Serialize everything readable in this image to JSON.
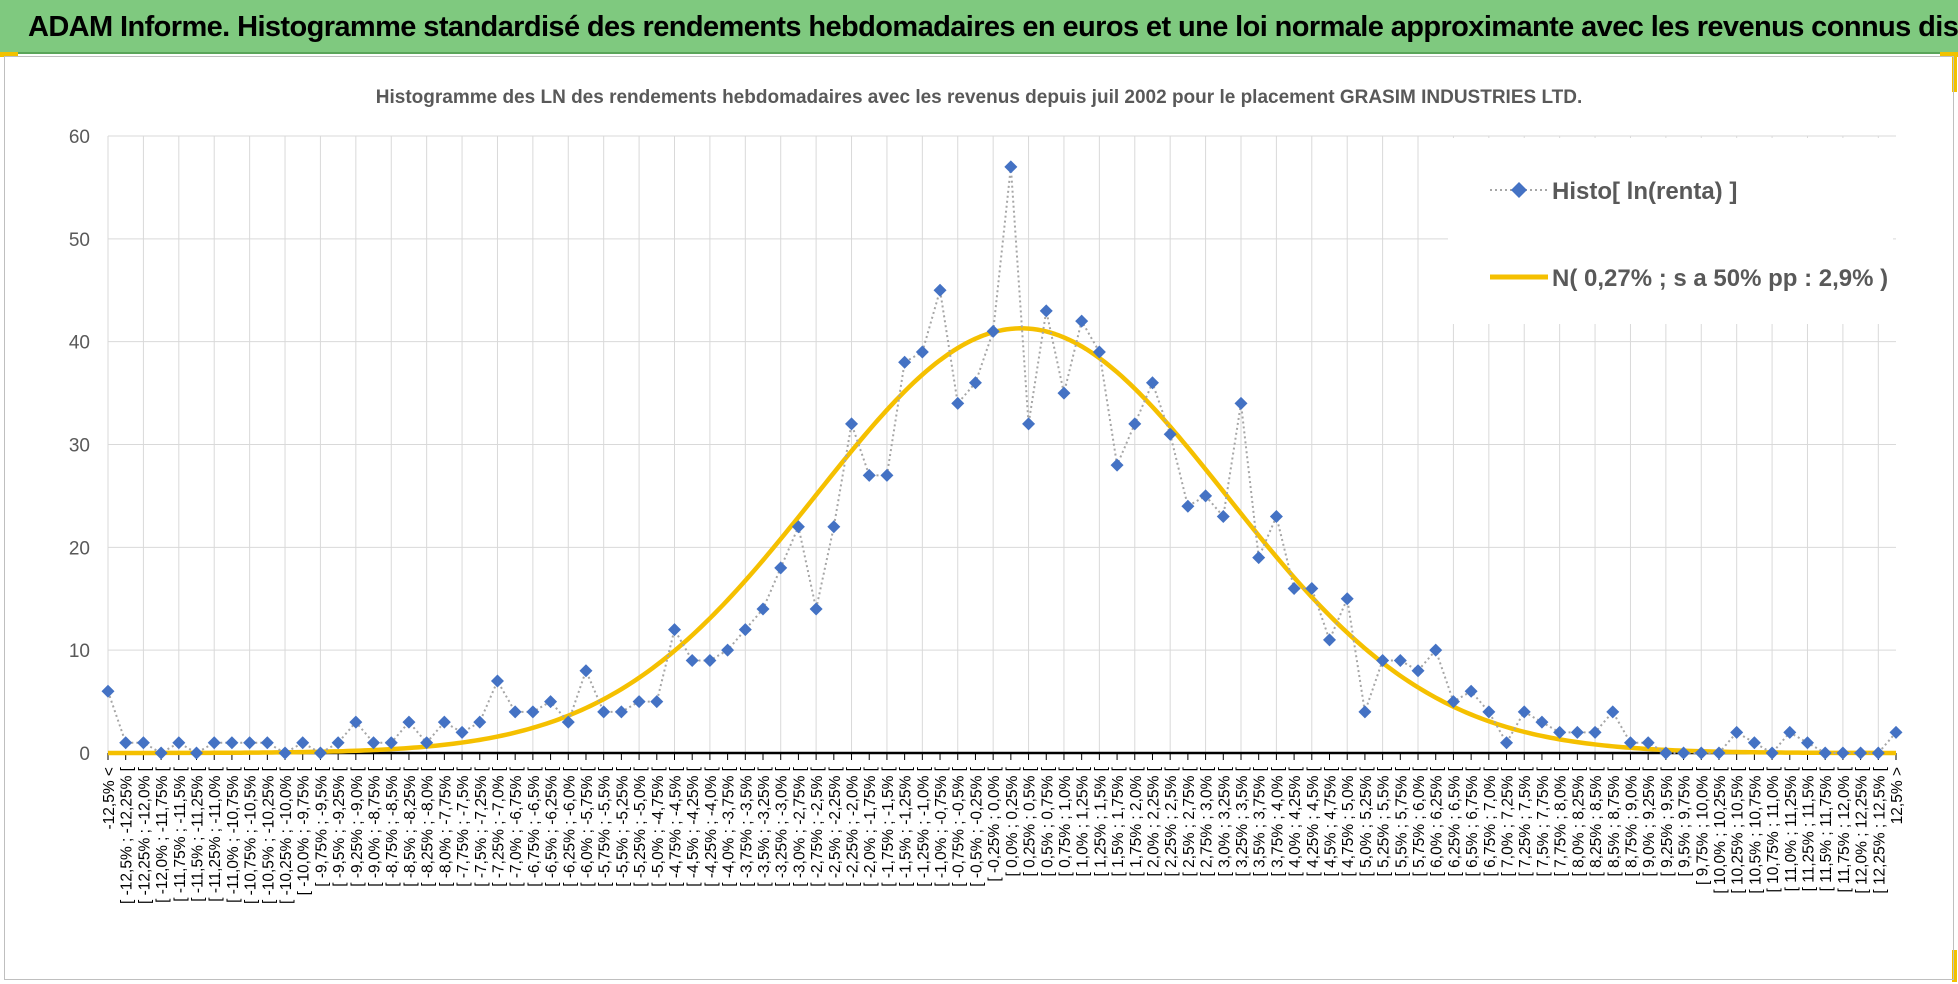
{
  "banner": {
    "title": "ADAM Informe. Histogramme standardisé des rendements hebdomadaires en euros et une loi normale approximante avec les revenus connus distribués",
    "background": "#7fc97f",
    "accent": "#f2c200"
  },
  "chart_data": {
    "type": "line",
    "title": "Histogramme des LN des rendements hebdomadaires avec les revenus depuis juil 2002 pour le placement GRASIM INDUSTRIES LTD.",
    "xlabel": "",
    "ylabel": "",
    "ylim": [
      0,
      60
    ],
    "yticks": [
      0,
      10,
      20,
      30,
      40,
      50,
      60
    ],
    "grid": true,
    "legend_position": "top-right",
    "categories": [
      "-12,5% <",
      "[ -12,5% ; -12,25% [",
      "[ -12,25% ; -12,0% [",
      "[ -12,0% ; -11,75% [",
      "[ -11,75% ; -11,5% [",
      "[ -11,5% ; -11,25% [",
      "[ -11,25% ; -11,0% [",
      "[ -11,0% ; -10,75% [",
      "[ -10,75% ; -10,5% [",
      "[ -10,5% ; -10,25% [",
      "[ -10,25% ; -10,0% [",
      "[ -10,0% ; -9,75% [",
      "[ -9,75% ; -9,5% [",
      "[ -9,5% ; -9,25% [",
      "[ -9,25% ; -9,0% [",
      "[ -9,0% ; -8,75% [",
      "[ -8,75% ; -8,5% [",
      "[ -8,5% ; -8,25% [",
      "[ -8,25% ; -8,0% [",
      "[ -8,0% ; -7,75% [",
      "[ -7,75% ; -7,5% [",
      "[ -7,5% ; -7,25% [",
      "[ -7,25% ; -7,0% [",
      "[ -7,0% ; -6,75% [",
      "[ -6,75% ; -6,5% [",
      "[ -6,5% ; -6,25% [",
      "[ -6,25% ; -6,0% [",
      "[ -6,0% ; -5,75% [",
      "[ -5,75% ; -5,5% [",
      "[ -5,5% ; -5,25% [",
      "[ -5,25% ; -5,0% [",
      "[ -5,0% ; -4,75% [",
      "[ -4,75% ; -4,5% [",
      "[ -4,5% ; -4,25% [",
      "[ -4,25% ; -4,0% [",
      "[ -4,0% ; -3,75% [",
      "[ -3,75% ; -3,5% [",
      "[ -3,5% ; -3,25% [",
      "[ -3,25% ; -3,0% [",
      "[ -3,0% ; -2,75% [",
      "[ -2,75% ; -2,5% [",
      "[ -2,5% ; -2,25% [",
      "[ -2,25% ; -2,0% [",
      "[ -2,0% ; -1,75% [",
      "[ -1,75% ; -1,5% [",
      "[ -1,5% ; -1,25% [",
      "[ -1,25% ; -1,0% [",
      "[ -1,0% ; -0,75% [",
      "[ -0,75% ; -0,5% [",
      "[ -0,5% ; -0,25% [",
      "[ -0,25% ; 0,0% [",
      "[ 0,0% ; 0,25% [",
      "[ 0,25% ; 0,5% [",
      "[ 0,5% ; 0,75% [",
      "[ 0,75% ; 1,0% [",
      "[ 1,0% ; 1,25% [",
      "[ 1,25% ; 1,5% [",
      "[ 1,5% ; 1,75% [",
      "[ 1,75% ; 2,0% [",
      "[ 2,0% ; 2,25% [",
      "[ 2,25% ; 2,5% [",
      "[ 2,5% ; 2,75% [",
      "[ 2,75% ; 3,0% [",
      "[ 3,0% ; 3,25% [",
      "[ 3,25% ; 3,5% [",
      "[ 3,5% ; 3,75% [",
      "[ 3,75% ; 4,0% [",
      "[ 4,0% ; 4,25% [",
      "[ 4,25% ; 4,5% [",
      "[ 4,5% ; 4,75% [",
      "[ 4,75% ; 5,0% [",
      "[ 5,0% ; 5,25% [",
      "[ 5,25% ; 5,5% [",
      "[ 5,5% ; 5,75% [",
      "[ 5,75% ; 6,0% [",
      "[ 6,0% ; 6,25% [",
      "[ 6,25% ; 6,5% [",
      "[ 6,5% ; 6,75% [",
      "[ 6,75% ; 7,0% [",
      "[ 7,0% ; 7,25% [",
      "[ 7,25% ; 7,5% [",
      "[ 7,5% ; 7,75% [",
      "[ 7,75% ; 8,0% [",
      "[ 8,0% ; 8,25% [",
      "[ 8,25% ; 8,5% [",
      "[ 8,5% ; 8,75% [",
      "[ 8,75% ; 9,0% [",
      "[ 9,0% ; 9,25% [",
      "[ 9,25% ; 9,5% [",
      "[ 9,5% ; 9,75% [",
      "[ 9,75% ; 10,0% [",
      "[ 10,0% ; 10,25% [",
      "[ 10,25% ; 10,5% [",
      "[ 10,5% ; 10,75% [",
      "[ 10,75% ; 11,0% [",
      "[ 11,0% ; 11,25% [",
      "[ 11,25% ; 11,5% [",
      "[ 11,5% ; 11,75% [",
      "[ 11,75% ; 12,0% [",
      "[ 12,0% ; 12,25% [",
      "[ 12,25% ; 12,5% [",
      "12,5% >"
    ],
    "series": [
      {
        "name": "Histo[ ln(renta) ]",
        "color": "#4472c4",
        "style": "dotted-with-diamond-markers",
        "values": [
          6,
          1,
          1,
          0,
          1,
          0,
          1,
          1,
          1,
          1,
          0,
          1,
          0,
          1,
          3,
          1,
          1,
          3,
          1,
          3,
          2,
          3,
          7,
          4,
          4,
          5,
          3,
          8,
          4,
          4,
          5,
          5,
          12,
          9,
          9,
          10,
          12,
          14,
          18,
          22,
          14,
          22,
          32,
          27,
          27,
          38,
          39,
          45,
          34,
          36,
          41,
          57,
          32,
          43,
          35,
          42,
          39,
          28,
          32,
          36,
          31,
          24,
          25,
          23,
          34,
          19,
          23,
          16,
          16,
          11,
          15,
          4,
          9,
          9,
          8,
          10,
          5,
          6,
          4,
          1,
          4,
          3,
          2,
          2,
          2,
          4,
          1,
          1,
          0,
          0,
          0,
          0,
          2,
          1,
          0,
          2,
          1,
          0,
          0,
          0,
          0,
          2
        ]
      },
      {
        "name": "N( 0,27% ; s a 50% pp : 2,9% )",
        "color": "#f5c000",
        "style": "solid-smooth-curve",
        "mean": 0.27,
        "sd": 2.9,
        "peak": 41.3
      }
    ]
  }
}
